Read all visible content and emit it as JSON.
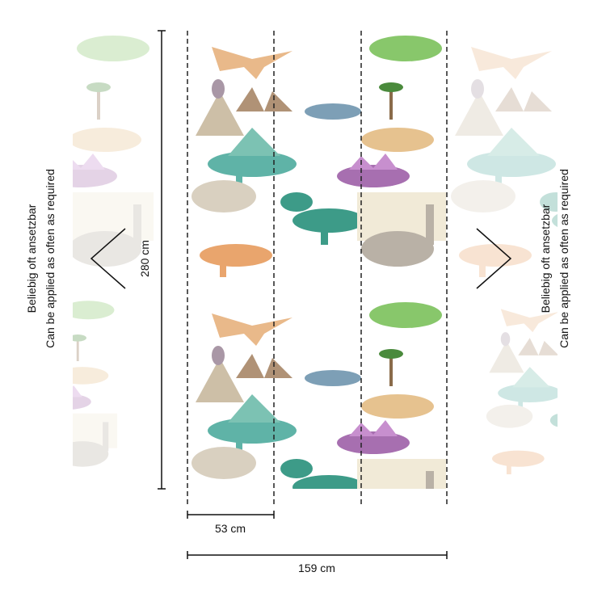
{
  "dimensions": {
    "height": "280 cm",
    "panel_width": "53 cm",
    "total_width": "159 cm"
  },
  "left_note": {
    "line1": "Beliebig oft ansetzbar",
    "line2": "Can be applied as often as required"
  },
  "right_note": {
    "line1": "Beliebig oft ansetzbar",
    "line2": "Can be applied as often as required"
  }
}
